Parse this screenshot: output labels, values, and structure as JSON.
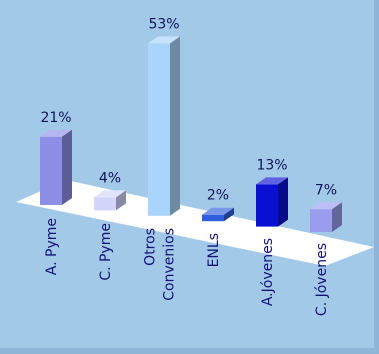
{
  "chart_data": {
    "type": "bar",
    "style": "3d",
    "categories": [
      "A. Pyme",
      "C. Pyme",
      "Otros Convenios",
      "ENLs",
      "A.Jóvenes",
      "C. Jóvenes"
    ],
    "category_label_lines": [
      [
        "A. Pyme"
      ],
      [
        "C. Pyme"
      ],
      [
        "Otros",
        "Convenios"
      ],
      [
        "ENLs"
      ],
      [
        "A.Jóvenes"
      ],
      [
        "C. Jóvenes"
      ]
    ],
    "values": [
      21,
      4,
      53,
      2,
      13,
      7
    ],
    "value_labels": [
      "21%",
      "4%",
      "53%",
      "2%",
      "13%",
      "7%"
    ],
    "unit": "%",
    "title": "",
    "xlabel": "",
    "ylabel": "",
    "ylim": [
      0,
      53
    ],
    "grid": false,
    "legend": "none",
    "bar_colors": [
      "#8d8fe6",
      "#d2d4fa",
      "#a9d4fb",
      "#2f5fdc",
      "#0a10d2",
      "#9a9cee"
    ],
    "floor_color": "#ffffff",
    "background_color": "#a3c9e8"
  }
}
